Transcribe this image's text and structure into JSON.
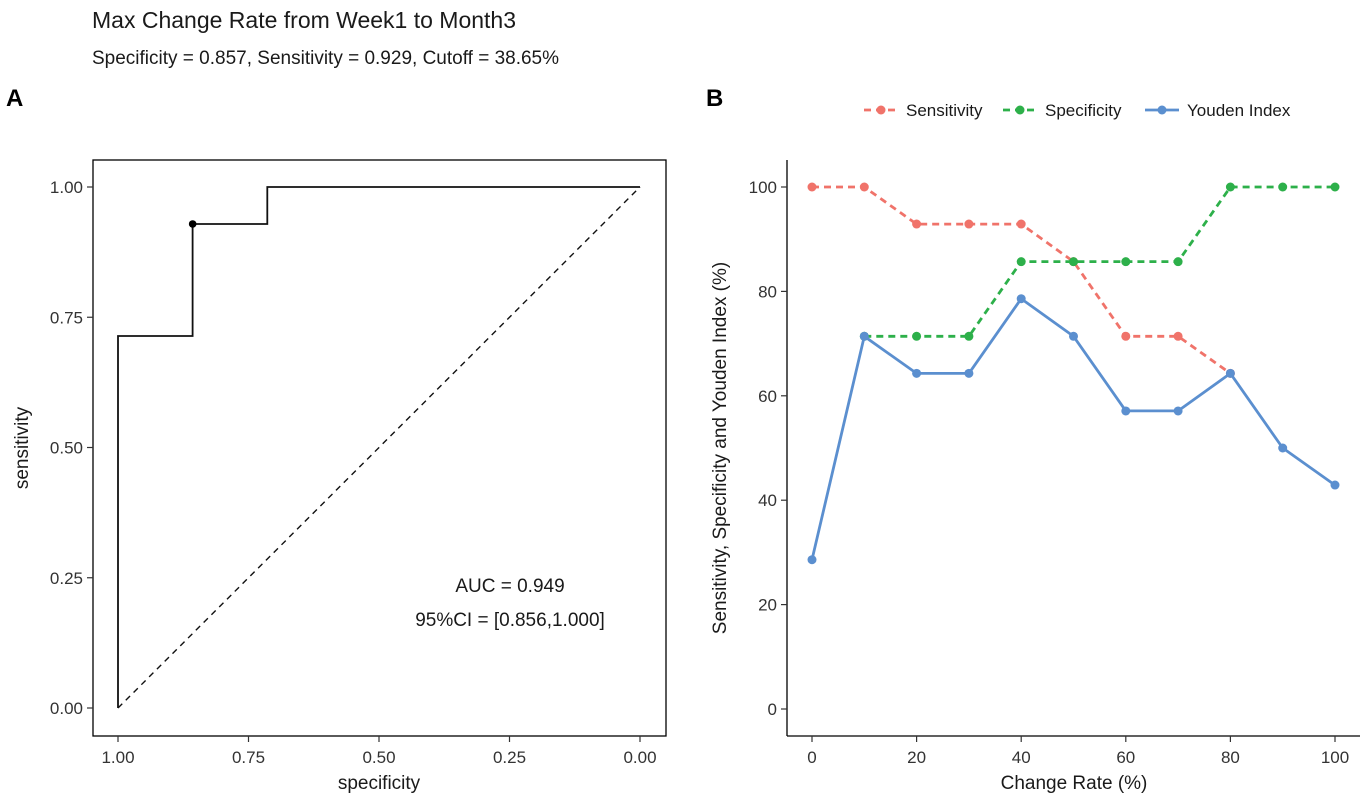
{
  "figure": {
    "title": "Max Change Rate from Week1 to Month3",
    "subtitle": "Specificity = 0.857, Sensitivity = 0.929, Cutoff = 38.65%"
  },
  "chart_data": [
    {
      "type": "line",
      "panel_label": "A",
      "xlabel": "specificity",
      "ylabel": "sensitivity",
      "xlim": [
        1.0,
        0.0
      ],
      "ylim": [
        0.0,
        1.0
      ],
      "x_ticks": [
        "1.00",
        "0.75",
        "0.50",
        "0.25",
        "0.00"
      ],
      "y_ticks": [
        "0.00",
        "0.25",
        "0.50",
        "0.75",
        "1.00"
      ],
      "x_tick_values": [
        1.0,
        0.75,
        0.5,
        0.25,
        0.0
      ],
      "y_tick_values": [
        0.0,
        0.25,
        0.5,
        0.75,
        1.0
      ],
      "roc_curve": {
        "specificity": [
          1.0,
          1.0,
          0.857,
          0.857,
          0.714,
          0.714,
          0.0
        ],
        "sensitivity": [
          0.0,
          0.714,
          0.714,
          0.929,
          0.929,
          1.0,
          1.0
        ]
      },
      "reference_line": {
        "specificity": [
          1.0,
          0.0
        ],
        "sensitivity": [
          0.0,
          1.0
        ]
      },
      "cutoff_point": {
        "specificity": 0.857,
        "sensitivity": 0.929
      },
      "annotations": [
        "AUC = 0.949",
        "95%CI = [0.856,1.000]"
      ],
      "grid": false
    },
    {
      "type": "line",
      "panel_label": "B",
      "xlabel": "Change Rate (%)",
      "ylabel": "Sensitivity, Specificity and Youden Index (%)",
      "xlim": [
        0,
        100
      ],
      "ylim": [
        0,
        100
      ],
      "x_ticks": [
        0,
        20,
        40,
        60,
        80,
        100
      ],
      "y_ticks": [
        0,
        20,
        40,
        60,
        80,
        100
      ],
      "x": [
        0,
        10,
        20,
        30,
        40,
        50,
        60,
        70,
        80,
        90,
        100
      ],
      "legend_position": "top",
      "grid": false,
      "series": [
        {
          "name": "Sensitivity",
          "color": "#F0736A",
          "dash": true,
          "x": [
            0,
            10,
            20,
            30,
            40,
            50,
            60,
            70,
            80
          ],
          "values": [
            100,
            100,
            92.9,
            92.9,
            92.9,
            85.7,
            71.4,
            71.4,
            64.3
          ]
        },
        {
          "name": "Specificity",
          "color": "#2DB04A",
          "dash": true,
          "x": [
            10,
            20,
            30,
            40,
            50,
            60,
            70,
            80,
            90,
            100
          ],
          "values": [
            71.4,
            71.4,
            71.4,
            85.7,
            85.7,
            85.7,
            85.7,
            100,
            100,
            100
          ]
        },
        {
          "name": "Youden Index",
          "color": "#5B8FCF",
          "dash": false,
          "x": [
            0,
            10,
            20,
            30,
            40,
            50,
            60,
            70,
            80,
            90,
            100
          ],
          "values": [
            28.6,
            71.4,
            64.3,
            64.3,
            78.6,
            71.4,
            57.1,
            57.1,
            64.3,
            50.0,
            42.9
          ]
        }
      ]
    }
  ]
}
